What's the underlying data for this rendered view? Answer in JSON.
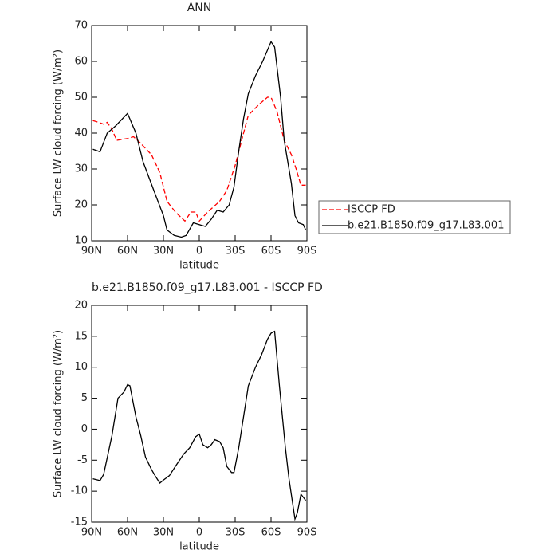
{
  "chart_data": [
    {
      "type": "line",
      "title": "ANN",
      "x_label": "latitude",
      "y_label": "Surface LW cloud forcing (W/m²)",
      "xlim": [
        90,
        -90
      ],
      "ylim": [
        10,
        70
      ],
      "xticks": [
        {
          "value": 90,
          "label": "90N"
        },
        {
          "value": 60,
          "label": "60N"
        },
        {
          "value": 30,
          "label": "30N"
        },
        {
          "value": 0,
          "label": "0"
        },
        {
          "value": -30,
          "label": "30S"
        },
        {
          "value": -60,
          "label": "60S"
        },
        {
          "value": -90,
          "label": "90S"
        }
      ],
      "yticks": [
        10,
        20,
        30,
        40,
        50,
        60,
        70
      ],
      "legend": "right",
      "series": [
        {
          "name": "ISCCP FD",
          "color": "#ff0000",
          "dash": true,
          "x": [
            89,
            84,
            80,
            77,
            73,
            69,
            60,
            55,
            50,
            40,
            33,
            27,
            20,
            12,
            7,
            3,
            0,
            -7,
            -17,
            -23,
            -30,
            -37,
            -41,
            -50,
            -57,
            -60,
            -65,
            -71,
            -77,
            -81,
            -85,
            -89
          ],
          "values": [
            43.5,
            43,
            42.5,
            43,
            41,
            38,
            38.5,
            39,
            37.5,
            34,
            29,
            21,
            18,
            15.5,
            18,
            18,
            15.5,
            18,
            21,
            24,
            31,
            40,
            45,
            48,
            50,
            50,
            46,
            38,
            34,
            30,
            25.5,
            25.5
          ]
        },
        {
          "name": "b.e21.B1850.f09_g17.L83.001",
          "color": "#000000",
          "dash": false,
          "x": [
            89,
            83,
            77,
            70,
            60,
            53,
            47,
            38,
            30,
            27,
            21,
            15,
            11,
            5,
            0,
            -5,
            -10,
            -15,
            -20,
            -25,
            -29,
            -33,
            -37,
            -41,
            -47,
            -53,
            -60,
            -63,
            -68,
            -71,
            -77,
            -80,
            -83,
            -87,
            -89
          ],
          "values": [
            35.5,
            34.8,
            40,
            42,
            45.5,
            40,
            32,
            24,
            17,
            13,
            11.5,
            11,
            11.5,
            15,
            14.5,
            14,
            16,
            18.5,
            18,
            20,
            25,
            35,
            44,
            51,
            56,
            60,
            65.5,
            64,
            50,
            38,
            26,
            17,
            15,
            14.5,
            13
          ]
        }
      ]
    },
    {
      "type": "line",
      "title": "b.e21.B1850.f09_g17.L83.001 - ISCCP FD",
      "x_label": "latitude",
      "y_label": "Surface LW cloud forcing (W/m²)",
      "xlim": [
        90,
        -90
      ],
      "ylim": [
        -15,
        20
      ],
      "xticks": [
        {
          "value": 90,
          "label": "90N"
        },
        {
          "value": 60,
          "label": "60N"
        },
        {
          "value": 30,
          "label": "30N"
        },
        {
          "value": 0,
          "label": "0"
        },
        {
          "value": -30,
          "label": "30S"
        },
        {
          "value": -60,
          "label": "60S"
        },
        {
          "value": -90,
          "label": "90S"
        }
      ],
      "yticks": [
        -15,
        -10,
        -5,
        0,
        5,
        10,
        15,
        20
      ],
      "series": [
        {
          "color": "#000000",
          "dash": false,
          "x": [
            89,
            83,
            80,
            73,
            68,
            63,
            60,
            58,
            53,
            49,
            45,
            40,
            37,
            33,
            30,
            25,
            20,
            13,
            8,
            3,
            0,
            -3,
            -7,
            -10,
            -13,
            -17,
            -20,
            -23,
            -27,
            -29,
            -33,
            -37,
            -41,
            -47,
            -52,
            -57,
            -60,
            -63,
            -67,
            -72,
            -75,
            -80,
            -82,
            -85,
            -89
          ],
          "values": [
            -8,
            -8.3,
            -7.3,
            -1,
            5,
            6,
            7.2,
            7,
            2,
            -1,
            -4.5,
            -6.5,
            -7.5,
            -8.7,
            -8.2,
            -7.5,
            -6,
            -4,
            -3,
            -1.2,
            -0.8,
            -2.5,
            -3,
            -2.5,
            -1.7,
            -2,
            -3,
            -6,
            -7,
            -7,
            -3,
            2,
            7,
            10,
            12,
            14.5,
            15.5,
            15.8,
            7,
            -3,
            -8,
            -14.5,
            -13.5,
            -10.5,
            -11.5
          ]
        }
      ]
    }
  ]
}
